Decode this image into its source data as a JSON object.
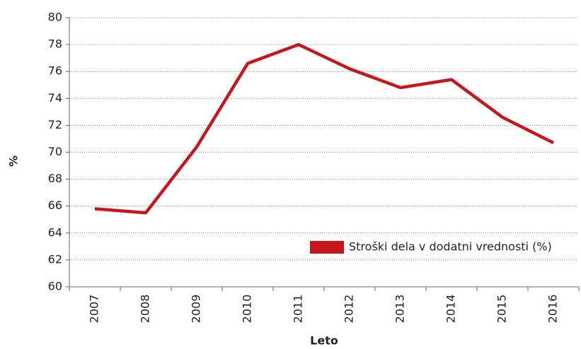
{
  "chart_data": {
    "type": "line",
    "categories": [
      "2007",
      "2008",
      "2009",
      "2010",
      "2011",
      "2012",
      "2013",
      "2014",
      "2015",
      "2016"
    ],
    "series": [
      {
        "name": "Stroški dela v dodatni vrednosti (%)",
        "color": "#c8161d",
        "values": [
          65.8,
          65.5,
          70.4,
          76.6,
          78.0,
          76.2,
          74.8,
          75.4,
          72.6,
          70.7
        ]
      }
    ],
    "ylim": [
      60,
      80
    ],
    "yticks": [
      60,
      62,
      64,
      66,
      68,
      70,
      72,
      74,
      76,
      78,
      80
    ],
    "y_label": "%",
    "x_label": "Leto",
    "grid": true,
    "legend": "lower right"
  }
}
